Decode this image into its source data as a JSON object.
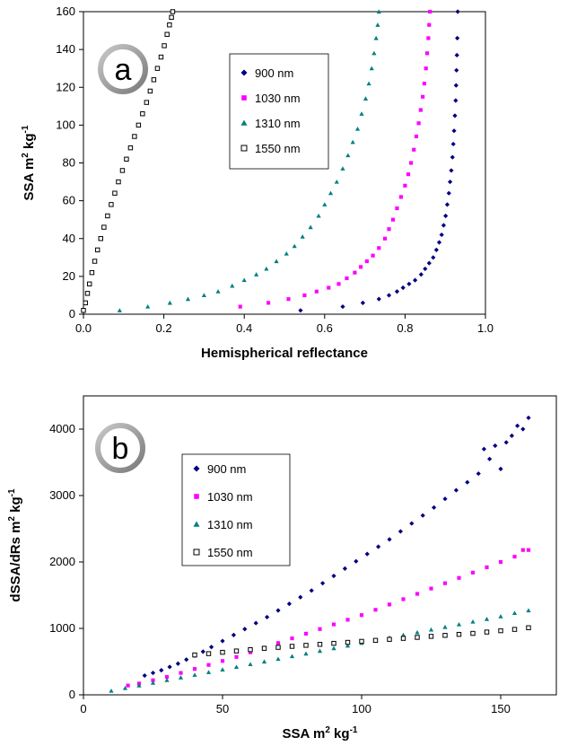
{
  "chart_data": [
    {
      "type": "scatter",
      "panel_label": "a",
      "xlabel": "Hemispherical reflectance",
      "ylabel": "SSA  m",
      "ylabel_unit_kg": " kg",
      "ylabel_sup_m": "2",
      "ylabel_sup_kg": "-1",
      "xlim": [
        0.0,
        1.0
      ],
      "ylim": [
        0,
        160
      ],
      "xticks": [
        "0.0",
        "0.2",
        "0.4",
        "0.6",
        "0.8",
        "1.0"
      ],
      "yticks": [
        "0",
        "20",
        "40",
        "60",
        "80",
        "100",
        "120",
        "140",
        "160"
      ],
      "legend_position": "upper-center",
      "series": [
        {
          "name": "900 nm",
          "color": "#000080",
          "marker": "diamond",
          "x": [
            0.54,
            0.645,
            0.695,
            0.735,
            0.76,
            0.78,
            0.795,
            0.81,
            0.825,
            0.84,
            0.85,
            0.86,
            0.87,
            0.878,
            0.885,
            0.891,
            0.896,
            0.901,
            0.905,
            0.909,
            0.912,
            0.915,
            0.918,
            0.92,
            0.922,
            0.924,
            0.926,
            0.927,
            0.928,
            0.929,
            0.93,
            0.931
          ],
          "y": [
            2,
            4,
            6,
            8,
            10,
            12,
            14,
            16,
            18,
            21,
            24,
            27,
            30,
            34,
            38,
            42,
            47,
            52,
            58,
            64,
            70,
            76,
            83,
            90,
            97,
            105,
            113,
            121,
            129,
            137,
            146,
            160
          ]
        },
        {
          "name": "1030 nm",
          "color": "#FF00FF",
          "marker": "square",
          "x": [
            0.39,
            0.46,
            0.51,
            0.55,
            0.58,
            0.61,
            0.635,
            0.655,
            0.675,
            0.69,
            0.705,
            0.72,
            0.735,
            0.75,
            0.76,
            0.77,
            0.78,
            0.79,
            0.8,
            0.808,
            0.815,
            0.822,
            0.828,
            0.834,
            0.839,
            0.844,
            0.848,
            0.852,
            0.855,
            0.858,
            0.86,
            0.862
          ],
          "y": [
            4,
            6,
            8,
            10,
            12,
            14,
            16,
            19,
            22,
            25,
            28,
            31,
            35,
            40,
            45,
            50,
            56,
            62,
            68,
            74,
            80,
            87,
            94,
            101,
            108,
            115,
            122,
            130,
            138,
            146,
            153,
            160
          ]
        },
        {
          "name": "1310 nm",
          "color": "#008080",
          "marker": "triangle",
          "x": [
            0.09,
            0.16,
            0.215,
            0.26,
            0.3,
            0.335,
            0.37,
            0.4,
            0.43,
            0.455,
            0.48,
            0.505,
            0.525,
            0.545,
            0.565,
            0.585,
            0.6,
            0.615,
            0.63,
            0.645,
            0.658,
            0.67,
            0.682,
            0.692,
            0.702,
            0.71,
            0.717,
            0.723,
            0.728,
            0.732,
            0.735
          ],
          "y": [
            2,
            4,
            6,
            8,
            10,
            12,
            15,
            18,
            21,
            24,
            28,
            32,
            36,
            41,
            46,
            52,
            58,
            64,
            70,
            77,
            84,
            91,
            98,
            106,
            114,
            122,
            130,
            138,
            146,
            153,
            160
          ]
        },
        {
          "name": "1550 nm",
          "color": "#000000",
          "marker": "open-square",
          "x": [
            0.0,
            0.005,
            0.01,
            0.015,
            0.021,
            0.028,
            0.035,
            0.043,
            0.051,
            0.06,
            0.069,
            0.078,
            0.087,
            0.097,
            0.107,
            0.117,
            0.127,
            0.137,
            0.147,
            0.157,
            0.166,
            0.175,
            0.184,
            0.193,
            0.201,
            0.208,
            0.214,
            0.219,
            0.222
          ],
          "y": [
            2,
            6,
            11,
            16,
            22,
            28,
            34,
            40,
            46,
            52,
            58,
            64,
            70,
            76,
            82,
            88,
            94,
            100,
            106,
            112,
            118,
            124,
            130,
            136,
            142,
            148,
            153,
            157,
            160
          ]
        }
      ]
    },
    {
      "type": "scatter",
      "panel_label": "b",
      "xlabel": "SSA   m",
      "xlabel_unit_kg": " kg",
      "xlabel_sup_m": "2",
      "xlabel_sup_kg": "-1",
      "ylabel": "dSSA/dRs  m",
      "ylabel_unit_kg": " kg",
      "ylabel_sup_m": "2",
      "ylabel_sup_kg": "-1",
      "xlim": [
        0,
        170
      ],
      "ylim": [
        0,
        4500
      ],
      "xticks": [
        "0",
        "50",
        "100",
        "150"
      ],
      "yticks": [
        "0",
        "1000",
        "2000",
        "3000",
        "4000"
      ],
      "legend_position": "upper-left",
      "series": [
        {
          "name": "900 nm",
          "color": "#000080",
          "marker": "diamond",
          "x": [
            22,
            25,
            28,
            31,
            34,
            37,
            40,
            43,
            46,
            50,
            54,
            58,
            62,
            66,
            70,
            74,
            78,
            82,
            86,
            90,
            94,
            98,
            102,
            106,
            110,
            114,
            118,
            122,
            126,
            130,
            134,
            138,
            142,
            144,
            146,
            148,
            150,
            152,
            154,
            156,
            158,
            160
          ],
          "y": [
            290,
            330,
            370,
            420,
            470,
            530,
            590,
            650,
            720,
            810,
            900,
            990,
            1080,
            1170,
            1270,
            1370,
            1470,
            1570,
            1680,
            1790,
            1900,
            2010,
            2120,
            2230,
            2340,
            2460,
            2580,
            2700,
            2820,
            2950,
            3080,
            3200,
            3330,
            3700,
            3550,
            3750,
            3400,
            3800,
            3900,
            4050,
            4000,
            4170
          ]
        },
        {
          "name": "1030 nm",
          "color": "#FF00FF",
          "marker": "square",
          "x": [
            16,
            20,
            25,
            30,
            35,
            40,
            45,
            50,
            55,
            60,
            65,
            70,
            75,
            80,
            85,
            90,
            95,
            100,
            105,
            110,
            115,
            120,
            125,
            130,
            135,
            140,
            145,
            150,
            155,
            158,
            160
          ],
          "y": [
            140,
            170,
            220,
            270,
            330,
            390,
            450,
            510,
            570,
            640,
            710,
            780,
            850,
            920,
            990,
            1060,
            1130,
            1200,
            1280,
            1360,
            1440,
            1520,
            1600,
            1680,
            1760,
            1840,
            1920,
            2000,
            2080,
            2180,
            2180
          ]
        },
        {
          "name": "1310 nm",
          "color": "#008080",
          "marker": "triangle",
          "x": [
            10,
            15,
            20,
            25,
            30,
            35,
            40,
            45,
            50,
            55,
            60,
            65,
            70,
            75,
            80,
            85,
            90,
            95,
            100,
            105,
            110,
            115,
            120,
            125,
            130,
            135,
            140,
            145,
            150,
            155,
            160
          ],
          "y": [
            60,
            100,
            140,
            180,
            220,
            260,
            300,
            340,
            380,
            420,
            460,
            500,
            540,
            580,
            620,
            660,
            700,
            740,
            780,
            820,
            860,
            900,
            940,
            980,
            1020,
            1060,
            1100,
            1140,
            1180,
            1230,
            1270
          ]
        },
        {
          "name": "1550 nm",
          "color": "#000000",
          "marker": "open-square",
          "x": [
            40,
            45,
            50,
            55,
            60,
            65,
            70,
            75,
            80,
            85,
            90,
            95,
            100,
            105,
            110,
            115,
            120,
            125,
            130,
            135,
            140,
            145,
            150,
            155,
            160
          ],
          "y": [
            600,
            620,
            640,
            660,
            680,
            700,
            715,
            730,
            745,
            760,
            775,
            790,
            805,
            820,
            835,
            850,
            865,
            880,
            895,
            910,
            925,
            945,
            965,
            985,
            1010
          ]
        }
      ]
    }
  ]
}
